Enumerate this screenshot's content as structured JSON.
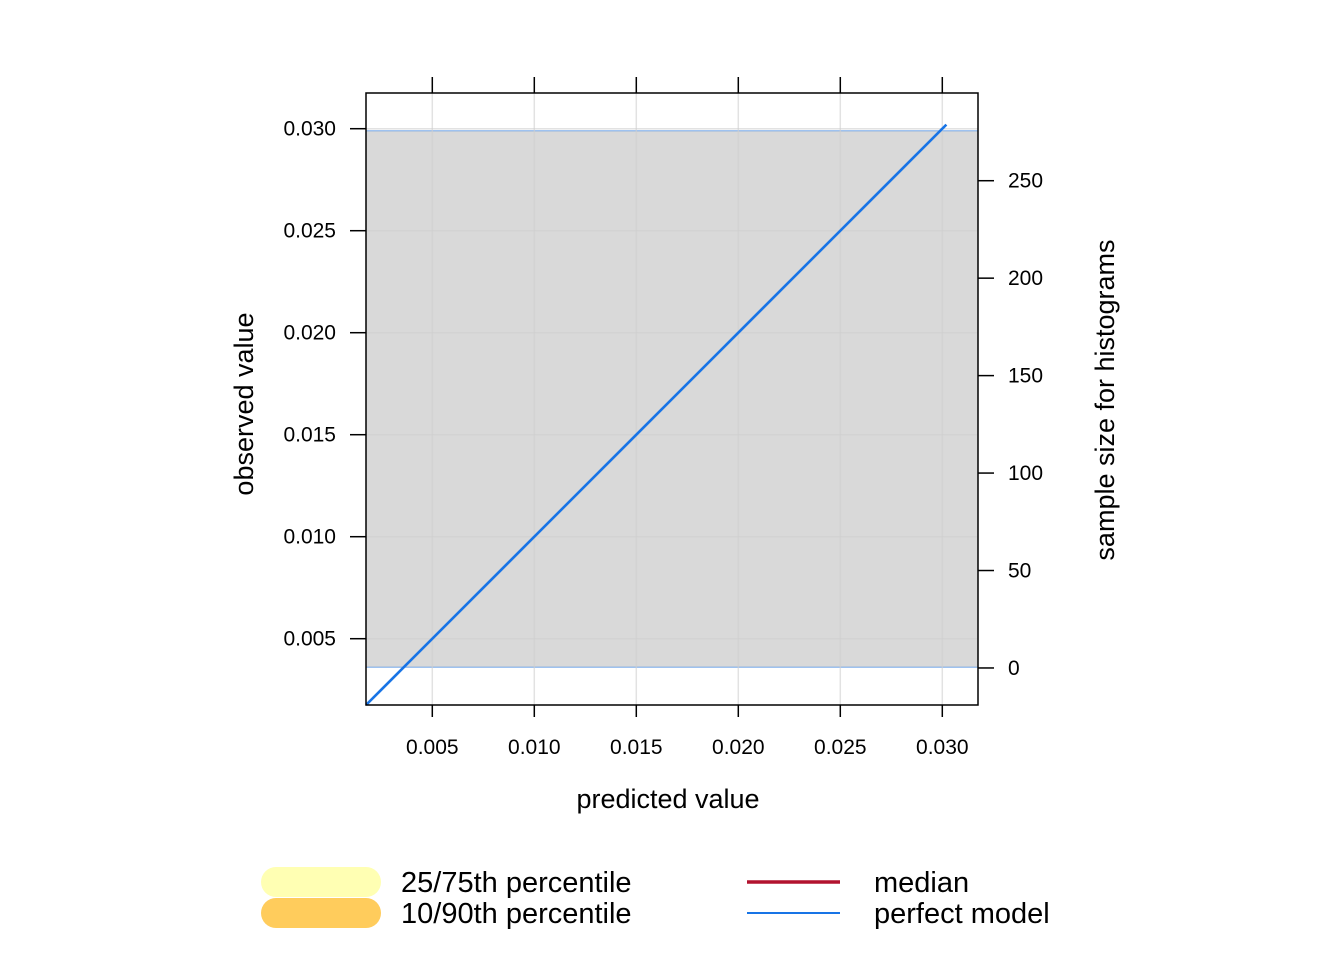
{
  "chart_data": {
    "type": "line",
    "title": "",
    "xlabel": "predicted value",
    "ylabel": "observed value",
    "y2label": "sample size for histograms",
    "xlim": [
      0.00175,
      0.03175
    ],
    "ylim": [
      0.00175,
      0.03175
    ],
    "y2lim": [
      -19,
      295
    ],
    "xticks": [
      {
        "value": 0.005,
        "label": "0.005"
      },
      {
        "value": 0.01,
        "label": "0.010"
      },
      {
        "value": 0.015,
        "label": "0.015"
      },
      {
        "value": 0.02,
        "label": "0.020"
      },
      {
        "value": 0.025,
        "label": "0.025"
      },
      {
        "value": 0.03,
        "label": "0.030"
      }
    ],
    "yticks": [
      {
        "value": 0.005,
        "label": "0.005"
      },
      {
        "value": 0.01,
        "label": "0.010"
      },
      {
        "value": 0.015,
        "label": "0.015"
      },
      {
        "value": 0.02,
        "label": "0.020"
      },
      {
        "value": 0.025,
        "label": "0.025"
      },
      {
        "value": 0.03,
        "label": "0.030"
      }
    ],
    "y2ticks": [
      {
        "value": 0,
        "label": "0"
      },
      {
        "value": 50,
        "label": "50"
      },
      {
        "value": 100,
        "label": "100"
      },
      {
        "value": 150,
        "label": "150"
      },
      {
        "value": 200,
        "label": "200"
      },
      {
        "value": 250,
        "label": "250"
      }
    ],
    "grid": true,
    "histogram_band": {
      "y_min": 0.0036,
      "y_max": 0.0299,
      "color": "#d9d9d9"
    },
    "series": [
      {
        "name": "perfect model",
        "x": [
          0.00175,
          0.0302
        ],
        "y": [
          0.00175,
          0.0302
        ],
        "color": "#1874e6"
      }
    ],
    "legend": {
      "placement": "bottom",
      "items": [
        {
          "label": "25/75th percentile",
          "kind": "band",
          "color": "#ffffb3"
        },
        {
          "label": "10/90th percentile",
          "kind": "band",
          "color": "#ffcc5c"
        },
        {
          "label": "median",
          "kind": "line",
          "color": "#b2122e"
        },
        {
          "label": "perfect model",
          "kind": "line",
          "color": "#1874e6"
        }
      ]
    }
  }
}
